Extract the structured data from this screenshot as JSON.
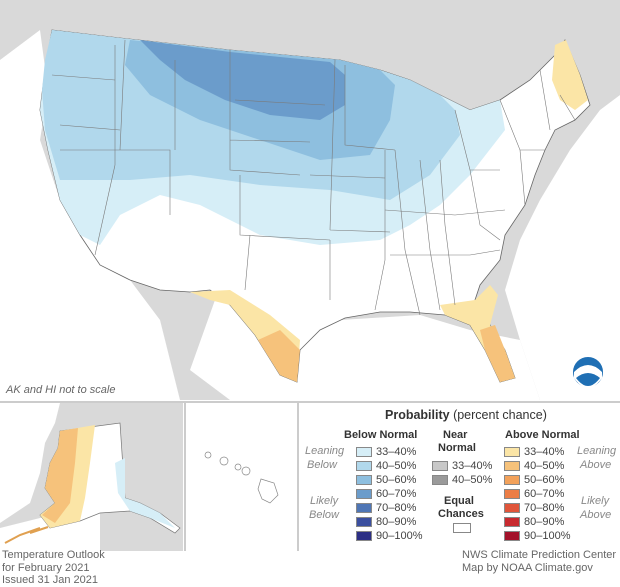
{
  "map": {
    "scale_note": "AK and HI not to scale",
    "colors": {
      "background_land": "#d9d9d9",
      "water": "#ffffff",
      "equal_chances": "#ffffff",
      "below_33_40": "#d6eef7",
      "below_40_50": "#b1d8ec",
      "below_50_60": "#8ebfdf",
      "below_60_70": "#6b9ccb",
      "above_33_40": "#fbe5a6",
      "above_40_50": "#f6c27b",
      "noaa_blue": "#1f6fb4"
    }
  },
  "legend": {
    "title_bold": "Probability",
    "title_rest": " (percent chance)",
    "below": {
      "heading": "Below Normal",
      "leaning_1": "Leaning",
      "leaning_2": "Below",
      "likely_1": "Likely",
      "likely_2": "Below",
      "entries": [
        {
          "label": "33–40%",
          "color": "#d6eef7"
        },
        {
          "label": "40–50%",
          "color": "#b1d8ec"
        },
        {
          "label": "50–60%",
          "color": "#8ebfdf"
        },
        {
          "label": "60–70%",
          "color": "#6b9ccb"
        },
        {
          "label": "70–80%",
          "color": "#4f76b5"
        },
        {
          "label": "80–90%",
          "color": "#3b4f9f"
        },
        {
          "label": "90–100%",
          "color": "#2c2f85"
        }
      ]
    },
    "near": {
      "heading_1": "Near",
      "heading_2": "Normal",
      "entries": [
        {
          "label": "33–40%",
          "color": "#c8c8c8"
        },
        {
          "label": "40–50%",
          "color": "#9a9a9a"
        }
      ],
      "equal_1": "Equal",
      "equal_2": "Chances"
    },
    "above": {
      "heading": "Above Normal",
      "leaning_1": "Leaning",
      "leaning_2": "Above",
      "likely_1": "Likely",
      "likely_2": "Above",
      "entries": [
        {
          "label": "33–40%",
          "color": "#fbe5a6"
        },
        {
          "label": "40–50%",
          "color": "#f6c27b"
        },
        {
          "label": "50–60%",
          "color": "#f2a15a"
        },
        {
          "label": "60–70%",
          "color": "#ec7d45"
        },
        {
          "label": "70–80%",
          "color": "#e0553a"
        },
        {
          "label": "80–90%",
          "color": "#c82a2f"
        },
        {
          "label": "90–100%",
          "color": "#a3122a"
        }
      ]
    }
  },
  "footer": {
    "left_1": "Temperature Outlook",
    "left_2": "for February 2021",
    "left_3": "Issued 31 Jan 2021",
    "right_1": "NWS Climate Prediction Center",
    "right_2": "Map by NOAA Climate.gov"
  }
}
